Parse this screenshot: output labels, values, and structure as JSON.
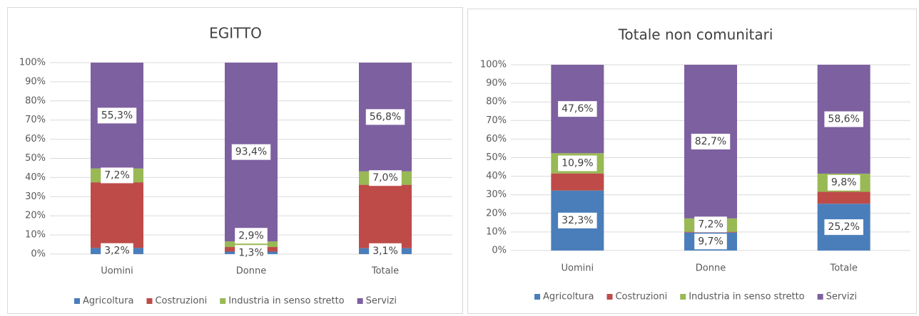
{
  "chart_data": [
    {
      "type": "stacked_bar",
      "title": "EGITTO",
      "categories": [
        "Uomini",
        "Donne",
        "Totale"
      ],
      "series": [
        {
          "name": "Agricoltura",
          "color": "#4a7ebb",
          "values": [
            3.2,
            1.3,
            3.1
          ],
          "value_labels": [
            "3,2%",
            "1,3%",
            "3,1%"
          ]
        },
        {
          "name": "Costruzioni",
          "color": "#be4b48",
          "values": [
            34.3,
            2.4,
            33.1
          ]
        },
        {
          "name": "Industria in senso stretto",
          "color": "#98b954",
          "values": [
            7.2,
            2.9,
            7.0
          ],
          "value_labels": [
            "7,2%",
            "2,9%",
            "7,0%"
          ]
        },
        {
          "name": "Servizi",
          "color": "#7d60a0",
          "values": [
            55.3,
            93.4,
            56.8
          ],
          "value_labels": [
            "55,3%",
            "93,4%",
            "56,8%"
          ]
        }
      ],
      "ylim": [
        0,
        100
      ],
      "yticks": [
        {
          "value": 0,
          "label": "0%"
        },
        {
          "value": 10,
          "label": "10%"
        },
        {
          "value": 20,
          "label": "20%"
        },
        {
          "value": 30,
          "label": "30%"
        },
        {
          "value": 40,
          "label": "40%"
        },
        {
          "value": 50,
          "label": "50%"
        },
        {
          "value": 60,
          "label": "60%"
        },
        {
          "value": 70,
          "label": "70%"
        },
        {
          "value": 80,
          "label": "80%"
        },
        {
          "value": 90,
          "label": "90%"
        },
        {
          "value": 100,
          "label": "100%"
        }
      ],
      "grid": true,
      "legend": "bottom"
    },
    {
      "type": "stacked_bar",
      "title": "Totale non comunitari",
      "categories": [
        "Uomini",
        "Donne",
        "Totale"
      ],
      "series": [
        {
          "name": "Agricoltura",
          "color": "#4a7ebb",
          "values": [
            32.3,
            9.7,
            25.2
          ],
          "value_labels": [
            "32,3%",
            "9,7%",
            "25,2%"
          ]
        },
        {
          "name": "Costruzioni",
          "color": "#be4b48",
          "values": [
            9.2,
            0.4,
            6.4
          ]
        },
        {
          "name": "Industria in senso stretto",
          "color": "#98b954",
          "values": [
            10.9,
            7.2,
            9.8
          ],
          "value_labels": [
            "10,9%",
            "7,2%",
            "9,8%"
          ]
        },
        {
          "name": "Servizi",
          "color": "#7d60a0",
          "values": [
            47.6,
            82.7,
            58.6
          ],
          "value_labels": [
            "47,6%",
            "82,7%",
            "58,6%"
          ]
        }
      ],
      "ylim": [
        0,
        100
      ],
      "yticks": [
        {
          "value": 0,
          "label": "0%"
        },
        {
          "value": 10,
          "label": "10%"
        },
        {
          "value": 20,
          "label": "20%"
        },
        {
          "value": 30,
          "label": "30%"
        },
        {
          "value": 40,
          "label": "40%"
        },
        {
          "value": 50,
          "label": "50%"
        },
        {
          "value": 60,
          "label": "60%"
        },
        {
          "value": 70,
          "label": "70%"
        },
        {
          "value": 80,
          "label": "80%"
        },
        {
          "value": 90,
          "label": "90%"
        },
        {
          "value": 100,
          "label": "100%"
        }
      ],
      "grid": true,
      "legend": "bottom"
    }
  ]
}
